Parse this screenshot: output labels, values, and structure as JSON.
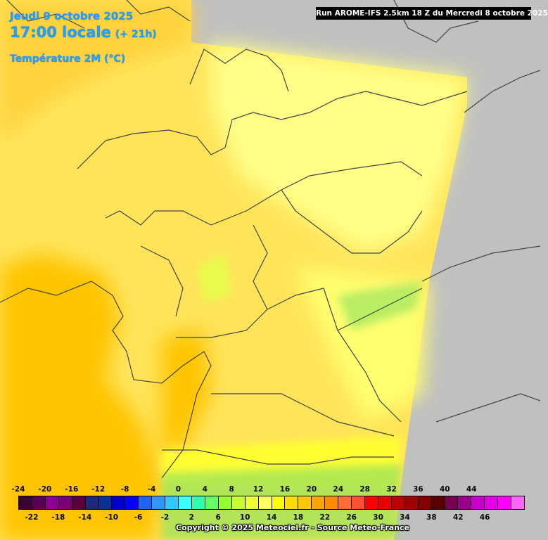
{
  "header": {
    "date": "Jeudi 9 octobre 2025",
    "hour": "17:00 locale",
    "lead": "(+ 21h)",
    "variable": "Température 2M (°C)"
  },
  "run_label": "Run AROME-IFS 2.5km 18 Z du Mercredi 8 octobre 2025",
  "copyright": "Copyright © 2025 Meteociel.fr - Source Meteo-France",
  "scale": {
    "top_labels": [
      "-24",
      "-20",
      "-16",
      "-12",
      "-8",
      "-4",
      "0",
      "4",
      "8",
      "12",
      "16",
      "20",
      "24",
      "28",
      "32",
      "36",
      "40",
      "44"
    ],
    "bottom_labels": [
      "-22",
      "-18",
      "-14",
      "-10",
      "-6",
      "-2",
      "2",
      "6",
      "10",
      "14",
      "18",
      "22",
      "26",
      "30",
      "34",
      "38",
      "42",
      "46"
    ],
    "colors": [
      "#3c0033",
      "#5a0050",
      "#8a0090",
      "#780070",
      "#5a003c",
      "#1e2a78",
      "#0a3296",
      "#0000cc",
      "#0000ff",
      "#1e64ff",
      "#3296ff",
      "#32c8ff",
      "#3cffff",
      "#32ffaa",
      "#64ff64",
      "#96ff32",
      "#c8ff32",
      "#f0ff32",
      "#ffff64",
      "#ffff00",
      "#ffdc00",
      "#ffc800",
      "#ffa500",
      "#ff8c00",
      "#ff6e32",
      "#ff5032",
      "#ff0000",
      "#e60000",
      "#be0000",
      "#a00000",
      "#820000",
      "#5a0000",
      "#780050",
      "#96008c",
      "#c800c8",
      "#e600e6",
      "#ff00ff",
      "#ff64ff"
    ]
  },
  "colors": {
    "outside": "#c0c0c0",
    "warm_orange": "#ffc400",
    "light_orange": "#ffd23c",
    "yellow": "#ffe45a",
    "pale_yellow": "#ffff99",
    "bright_yellow": "#ffff30",
    "green": "#9ae35a",
    "title_blue": "#1fa2ff"
  }
}
